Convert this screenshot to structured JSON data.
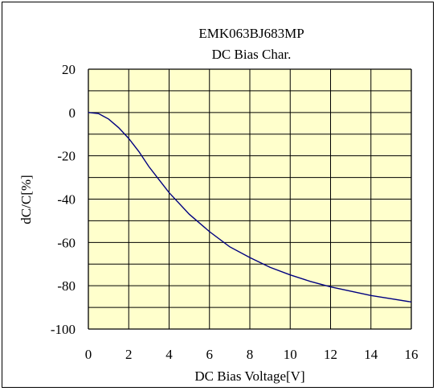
{
  "chart_data": {
    "type": "line",
    "title": "EMK063BJ683MP",
    "subtitle": "DC Bias Char.",
    "xlabel": "DC Bias Voltage[V]",
    "ylabel": "dC/C[%]",
    "xlim": [
      0,
      16
    ],
    "ylim": [
      -100,
      20
    ],
    "x_ticks": [
      "0",
      "2",
      "4",
      "6",
      "8",
      "10",
      "12",
      "14",
      "16"
    ],
    "y_ticks": [
      "20",
      "0",
      "-20",
      "-40",
      "-60",
      "-80",
      "-100"
    ],
    "grid": true,
    "legend": "none",
    "colors": {
      "plot_background": "#ffffcc",
      "line": "#000080",
      "grid": "#000000"
    },
    "series": [
      {
        "x": [
          0,
          0.5,
          1,
          1.5,
          2,
          2.5,
          3,
          3.5,
          4,
          5,
          6,
          7,
          8,
          9,
          10,
          11,
          12,
          13,
          14,
          15,
          16
        ],
        "values": [
          0,
          -0.5,
          -3,
          -7,
          -12,
          -18,
          -25,
          -31,
          -37,
          -47,
          -55,
          -62,
          -67,
          -71.5,
          -75,
          -78,
          -80.5,
          -82.5,
          -84.5,
          -86,
          -87.5
        ]
      }
    ]
  }
}
